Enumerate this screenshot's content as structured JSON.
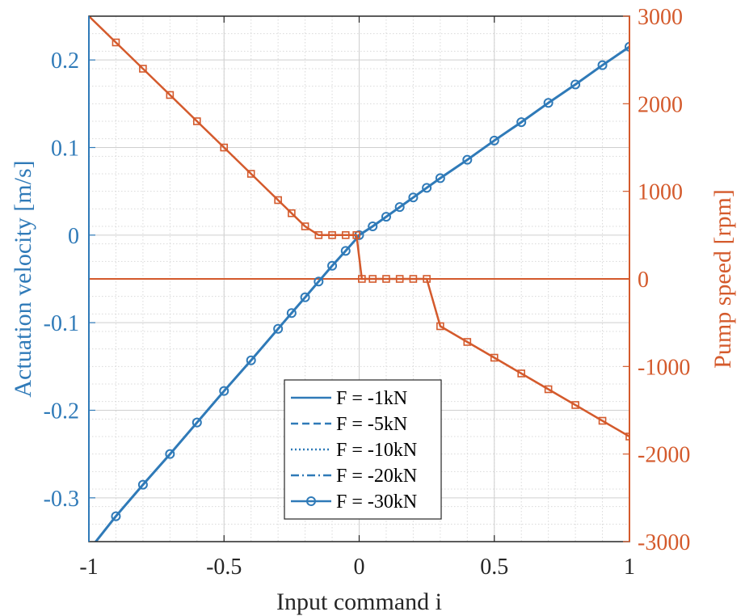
{
  "chart_data": {
    "type": "line",
    "xlabel": "Input command i",
    "ylabel_left": "Actuation velocity [m/s]",
    "ylabel_right": "Pump speed [rpm]",
    "xlim": [
      -1,
      1
    ],
    "ylim_left": [
      -0.35,
      0.25
    ],
    "ylim_right": [
      -3000,
      3000
    ],
    "x_ticks": [
      "-1",
      "-0.5",
      "0",
      "0.5",
      "1"
    ],
    "y_left_ticks": [
      "-0.3",
      "-0.2",
      "-0.1",
      "0",
      "0.1",
      "0.2"
    ],
    "y_right_ticks": [
      "-3000",
      "-2000",
      "-1000",
      "0",
      "1000",
      "2000",
      "3000"
    ],
    "grid": true,
    "minor_grid": true,
    "legend_position": "bottom-center",
    "colors": {
      "velocity": "#2f7ab8",
      "pump": "#d45a2c"
    },
    "legend": [
      {
        "label": "F = -1kN",
        "style": "solid"
      },
      {
        "label": "F = -5kN",
        "style": "dashed"
      },
      {
        "label": "F = -10kN",
        "style": "dotted"
      },
      {
        "label": "F = -20kN",
        "style": "dashdot"
      },
      {
        "label": "F = -30kN",
        "style": "solid-circle"
      }
    ],
    "velocity_series": {
      "axis": "left",
      "x": [
        -1,
        -0.9,
        -0.8,
        -0.7,
        -0.6,
        -0.5,
        -0.4,
        -0.3,
        -0.25,
        -0.2,
        -0.15,
        -0.1,
        -0.05,
        -0.01,
        0,
        0.01,
        0.05,
        0.1,
        0.15,
        0.2,
        0.25,
        0.3,
        0.4,
        0.5,
        0.6,
        0.7,
        0.8,
        0.9,
        1
      ],
      "values": [
        -0.36,
        -0.321,
        -0.285,
        -0.25,
        -0.214,
        -0.178,
        -0.143,
        -0.107,
        -0.089,
        -0.071,
        -0.053,
        -0.035,
        -0.018,
        -0.004,
        0.0,
        0.002,
        0.01,
        0.021,
        0.032,
        0.043,
        0.054,
        0.065,
        0.086,
        0.108,
        0.129,
        0.151,
        0.172,
        0.194,
        0.215
      ],
      "markers_x": [
        -0.9,
        -0.8,
        -0.7,
        -0.6,
        -0.5,
        -0.4,
        -0.3,
        -0.25,
        -0.2,
        -0.15,
        -0.1,
        -0.05,
        0,
        0.05,
        0.1,
        0.15,
        0.2,
        0.25,
        0.3,
        0.4,
        0.5,
        0.6,
        0.7,
        0.8,
        0.9,
        1
      ]
    },
    "pump_series": {
      "axis": "right",
      "x": [
        -1,
        -0.9,
        -0.8,
        -0.7,
        -0.6,
        -0.5,
        -0.4,
        -0.3,
        -0.25,
        -0.2,
        -0.15,
        -0.1,
        -0.05,
        -0.01,
        0.01,
        0.05,
        0.1,
        0.15,
        0.2,
        0.25,
        0.3,
        0.4,
        0.5,
        0.6,
        0.7,
        0.8,
        0.9,
        1
      ],
      "values": [
        3000,
        2700,
        2400,
        2100,
        1800,
        1500,
        1200,
        900,
        750,
        600,
        500,
        500,
        500,
        500,
        0,
        0,
        0,
        0,
        0,
        0,
        -540,
        -720,
        -900,
        -1080,
        -1260,
        -1440,
        -1620,
        -1800
      ],
      "markers_x": [
        -0.9,
        -0.8,
        -0.7,
        -0.6,
        -0.5,
        -0.4,
        -0.3,
        -0.25,
        -0.2,
        -0.15,
        -0.1,
        -0.05,
        -0.01,
        0.01,
        0.05,
        0.1,
        0.15,
        0.2,
        0.25,
        0.3,
        0.4,
        0.5,
        0.6,
        0.7,
        0.8,
        0.9,
        1
      ]
    },
    "pump_zero_line": {
      "axis": "right",
      "value": 0
    }
  }
}
